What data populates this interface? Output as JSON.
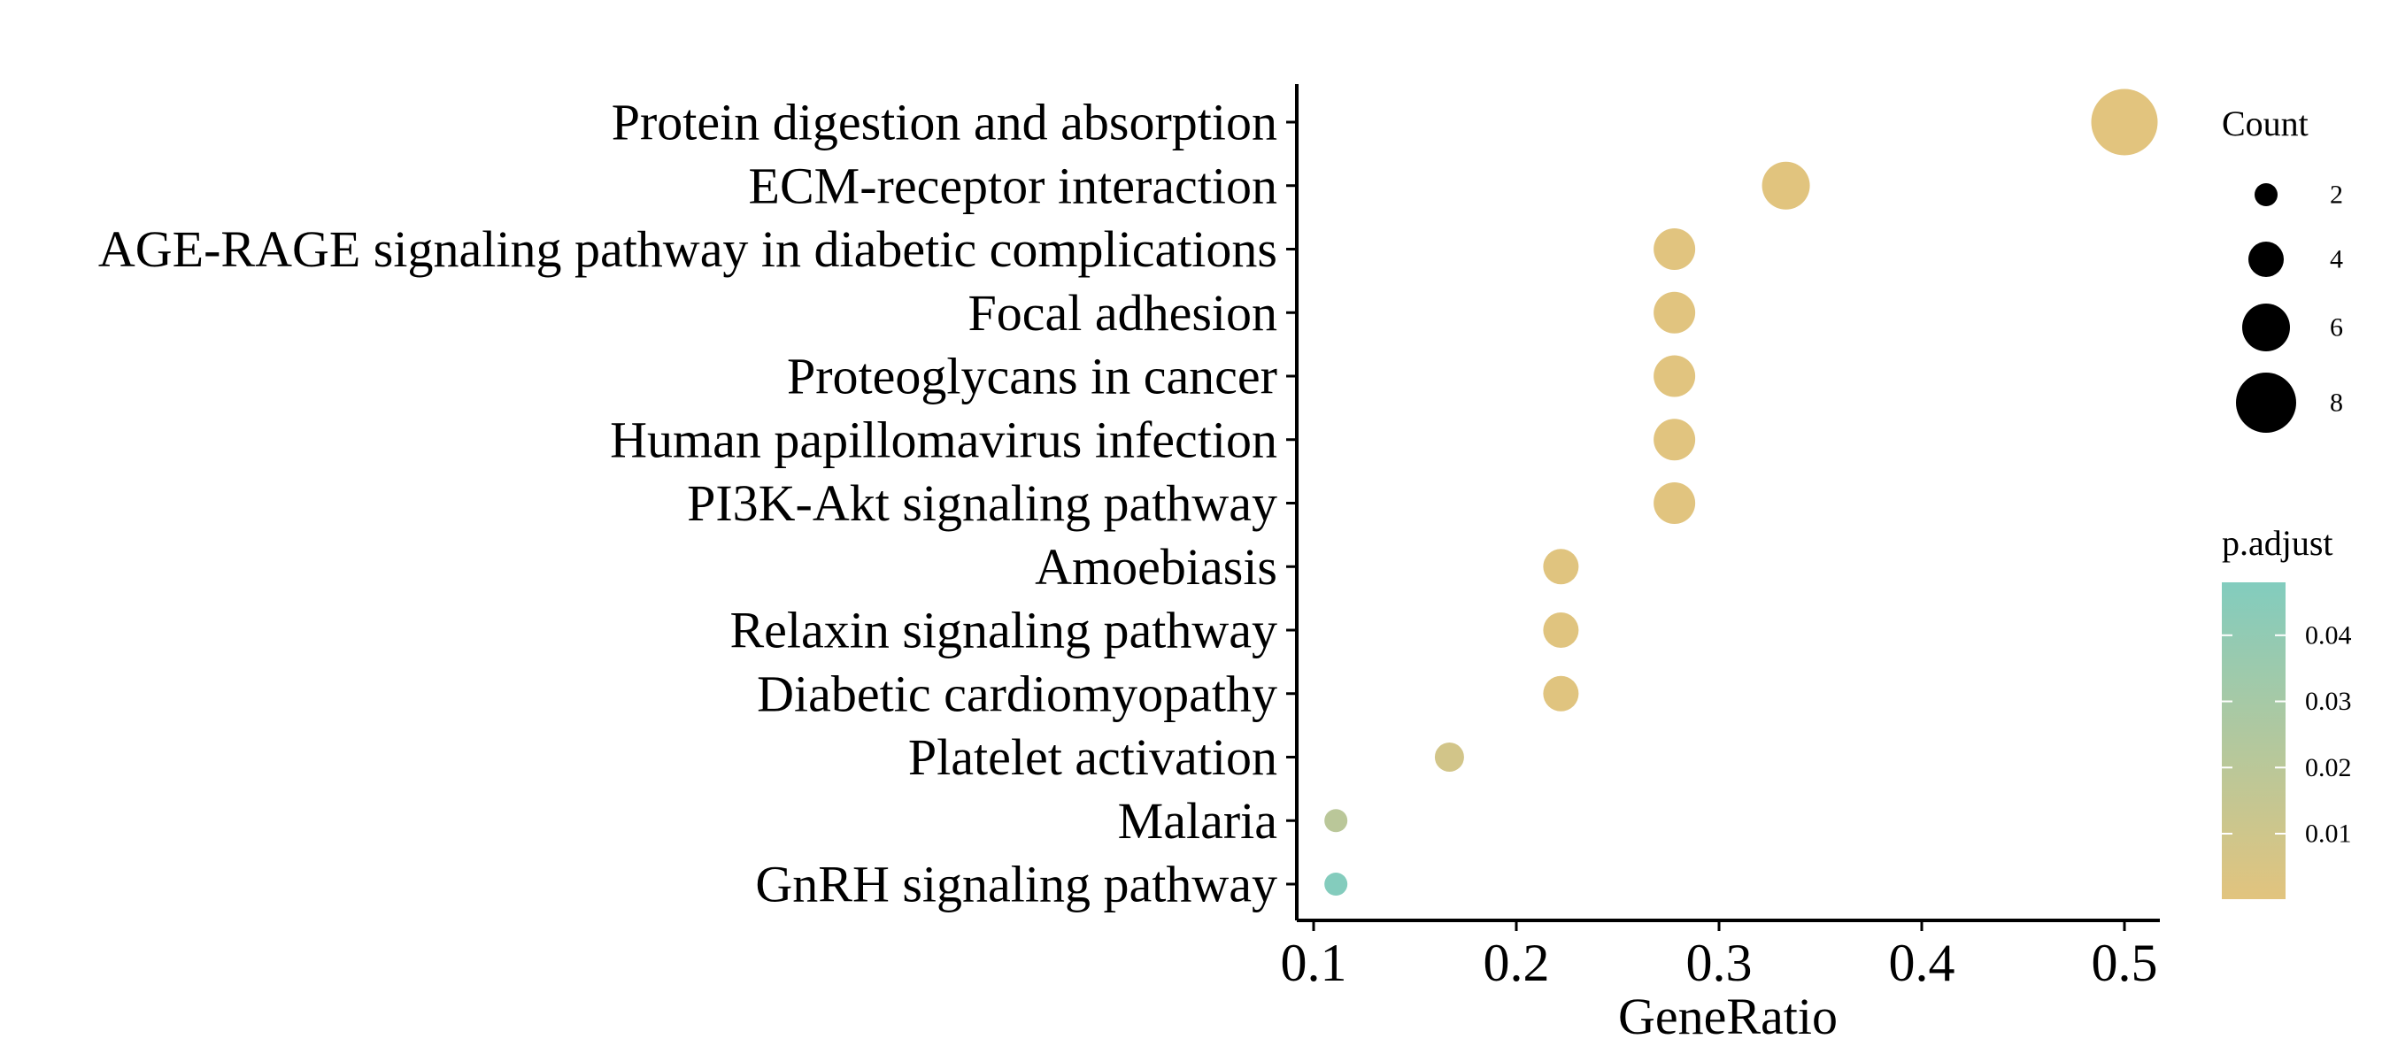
{
  "chart_data": {
    "type": "scatter",
    "xlabel": "GeneRatio",
    "ylabel": "",
    "xlim": [
      0.09,
      0.52
    ],
    "x_ticks": [
      "0.1",
      "0.2",
      "0.3",
      "0.4",
      "0.5"
    ],
    "categories": [
      "Protein digestion and absorption",
      "ECM-receptor interaction",
      "AGE-RAGE signaling pathway in diabetic complications",
      "Focal adhesion",
      "Proteoglycans in cancer",
      "Human papillomavirus infection",
      "PI3K-Akt signaling pathway",
      "Amoebiasis",
      "Relaxin signaling pathway",
      "Diabetic cardiomyopathy",
      "Platelet activation",
      "Malaria",
      "GnRH signaling pathway"
    ],
    "points": [
      {
        "category": "Protein digestion and absorption",
        "x": 0.5,
        "count": 9,
        "p_adjust": 0.0001
      },
      {
        "category": "ECM-receptor interaction",
        "x": 0.333,
        "count": 6,
        "p_adjust": 0.0004
      },
      {
        "category": "AGE-RAGE signaling pathway in diabetic complications",
        "x": 0.278,
        "count": 5,
        "p_adjust": 0.0006
      },
      {
        "category": "Focal adhesion",
        "x": 0.278,
        "count": 5,
        "p_adjust": 0.0006
      },
      {
        "category": "Proteoglycans in cancer",
        "x": 0.278,
        "count": 5,
        "p_adjust": 0.0006
      },
      {
        "category": "Human papillomavirus infection",
        "x": 0.278,
        "count": 5,
        "p_adjust": 0.0007
      },
      {
        "category": "PI3K-Akt signaling pathway",
        "x": 0.278,
        "count": 5,
        "p_adjust": 0.0008
      },
      {
        "category": "Amoebiasis",
        "x": 0.222,
        "count": 4,
        "p_adjust": 0.0009
      },
      {
        "category": "Relaxin signaling pathway",
        "x": 0.222,
        "count": 4,
        "p_adjust": 0.001
      },
      {
        "category": "Diabetic cardiomyopathy",
        "x": 0.222,
        "count": 4,
        "p_adjust": 0.0012
      },
      {
        "category": "Platelet activation",
        "x": 0.167,
        "count": 3,
        "p_adjust": 0.008
      },
      {
        "category": "Malaria",
        "x": 0.111,
        "count": 2,
        "p_adjust": 0.02
      },
      {
        "category": "GnRH signaling pathway",
        "x": 0.111,
        "count": 2,
        "p_adjust": 0.047
      }
    ],
    "size_legend": {
      "title": "Count",
      "values": [
        2,
        4,
        6,
        8
      ],
      "labels": [
        "2",
        "4",
        "6",
        "8"
      ]
    },
    "color_legend": {
      "title": "p.adjust",
      "range": [
        0.0001,
        0.048
      ],
      "ticks": [
        0.01,
        0.02,
        0.03,
        0.04
      ],
      "tick_labels": [
        "0.01",
        "0.02",
        "0.03",
        "0.04"
      ],
      "low_color": "#E2C47E",
      "high_color": "#82CCBE"
    },
    "grid": false,
    "legend_position": "right"
  }
}
